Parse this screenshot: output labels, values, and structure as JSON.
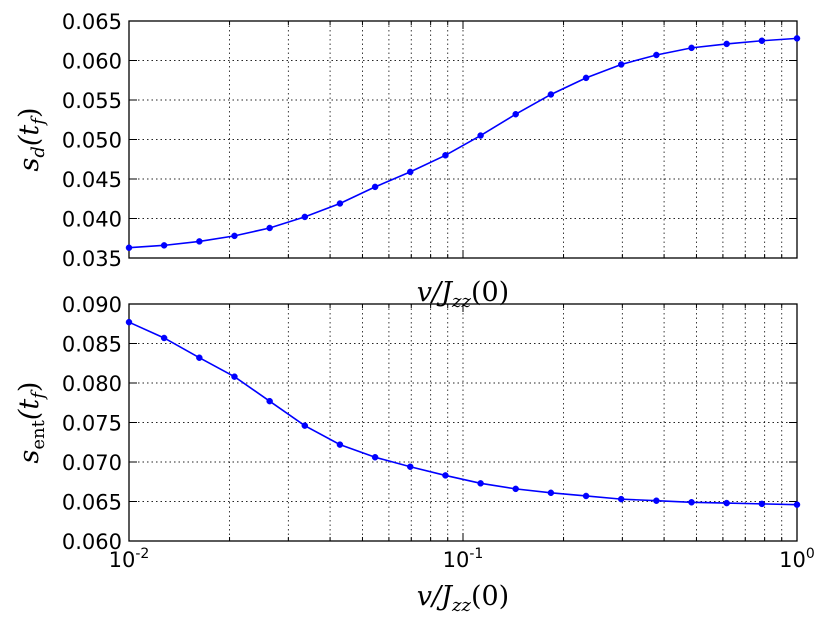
{
  "chart_data": [
    {
      "type": "line",
      "xscale": "log",
      "xlim": [
        0.01,
        1
      ],
      "ylim": [
        0.035,
        0.065
      ],
      "yticks": [
        "0.035",
        "0.040",
        "0.045",
        "0.050",
        "0.055",
        "0.060",
        "0.065"
      ],
      "ylabel_parts": [
        "s",
        "d",
        "(t",
        "f",
        ")"
      ],
      "xlabel_parts": [
        "v/J",
        "zz",
        "(0)"
      ],
      "grid": true,
      "color": "#0000ff",
      "x": [
        0.01,
        0.01274,
        0.01624,
        0.02069,
        0.02637,
        0.0336,
        0.04281,
        0.05456,
        0.06952,
        0.08859,
        0.1129,
        0.1438,
        0.1833,
        0.2336,
        0.2976,
        0.3793,
        0.4833,
        0.6158,
        0.7848,
        1.0
      ],
      "y": [
        0.0363,
        0.0366,
        0.0371,
        0.0378,
        0.0388,
        0.0402,
        0.0419,
        0.044,
        0.0459,
        0.048,
        0.0505,
        0.0532,
        0.0557,
        0.0578,
        0.0595,
        0.0607,
        0.0616,
        0.0621,
        0.0625,
        0.0628
      ]
    },
    {
      "type": "line",
      "xscale": "log",
      "xlim": [
        0.01,
        1
      ],
      "ylim": [
        0.06,
        0.09
      ],
      "yticks": [
        "0.060",
        "0.065",
        "0.070",
        "0.075",
        "0.080",
        "0.085",
        "0.090"
      ],
      "xticks": [
        {
          "base": "10",
          "exp": "-2"
        },
        {
          "base": "10",
          "exp": "-1"
        },
        {
          "base": "10",
          "exp": "0"
        }
      ],
      "ylabel_parts": [
        "s",
        "ent",
        "(t",
        "f",
        ")"
      ],
      "xlabel_parts": [
        "v/J",
        "zz",
        "(0)"
      ],
      "grid": true,
      "color": "#0000ff",
      "x": [
        0.01,
        0.01274,
        0.01624,
        0.02069,
        0.02637,
        0.0336,
        0.04281,
        0.05456,
        0.06952,
        0.08859,
        0.1129,
        0.1438,
        0.1833,
        0.2336,
        0.2976,
        0.3793,
        0.4833,
        0.6158,
        0.7848,
        1.0
      ],
      "y": [
        0.0877,
        0.0857,
        0.0832,
        0.0808,
        0.0777,
        0.0746,
        0.0722,
        0.0706,
        0.0694,
        0.0683,
        0.0673,
        0.0666,
        0.0661,
        0.0657,
        0.0653,
        0.0651,
        0.0649,
        0.0648,
        0.0647,
        0.0646
      ]
    }
  ]
}
